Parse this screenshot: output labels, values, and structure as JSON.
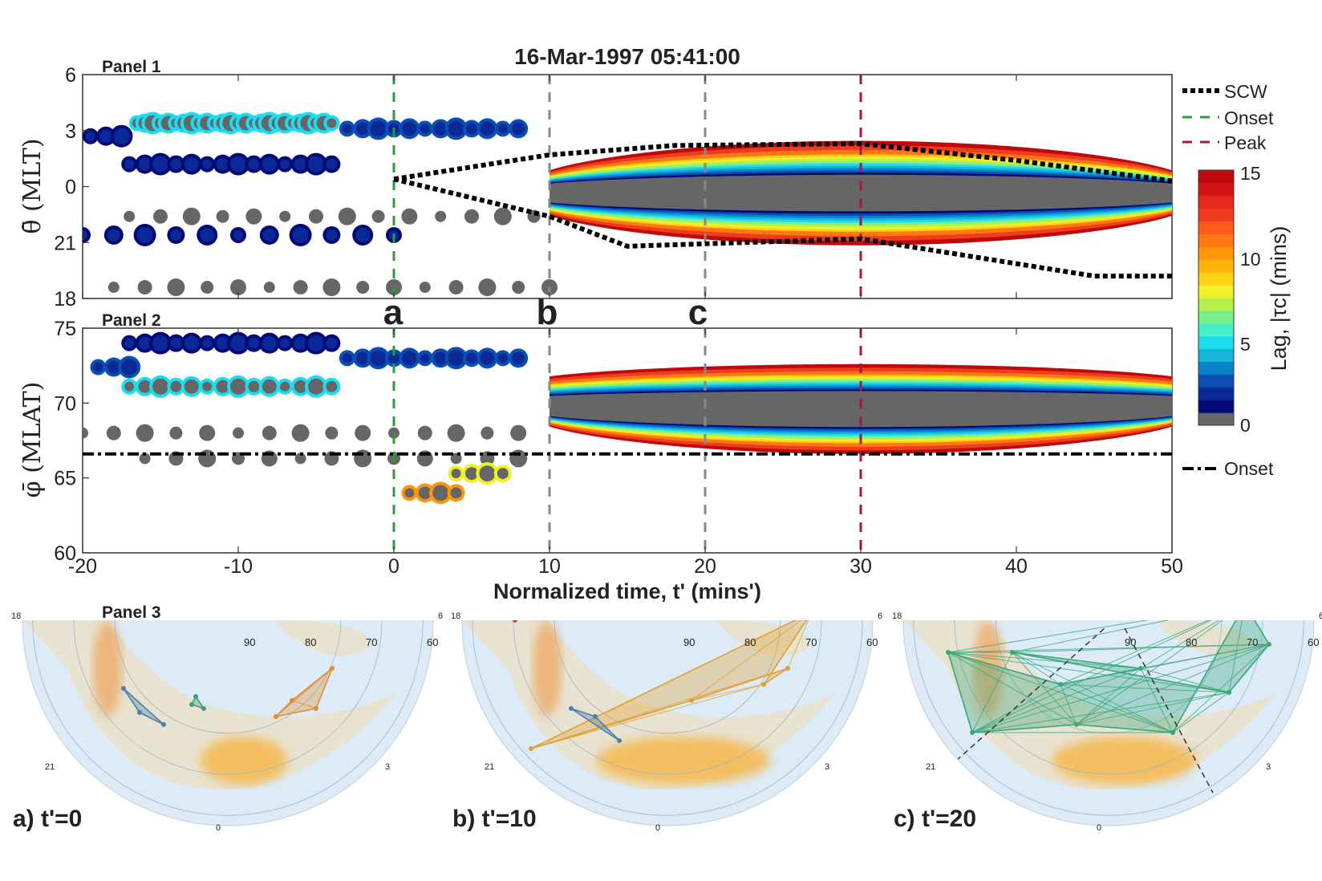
{
  "title": "16-Mar-1997 05:41:00",
  "panel_labels": [
    "Panel 1",
    "Panel 2",
    "Panel 3"
  ],
  "event_letters": [
    "a",
    "b",
    "c"
  ],
  "xlabel": "Normalized time, t' (mins')",
  "panel1_ylabel": "θ̄ (MLT)",
  "panel2_ylabel": "φ̄ (MLAT)",
  "colorbar_label": "Lag, |τc| (mins)",
  "colorbar_ticks": [
    "15",
    "10",
    "5",
    "0"
  ],
  "colorbar_colors": [
    "#666666",
    "#000a78",
    "#0a2896",
    "#0a50b4",
    "#0a82c8",
    "#14b4dc",
    "#1edcf0",
    "#46f0c8",
    "#78f08c",
    "#b4f050",
    "#f0f028",
    "#ffd214",
    "#ffb40a",
    "#ff960a",
    "#ff7814",
    "#ff5a1e",
    "#f03c1e",
    "#e6281e",
    "#d21414",
    "#be0a0a"
  ],
  "legend1": [
    {
      "label": "SCW",
      "style": "dotted",
      "color": "#000000"
    },
    {
      "label": "Onset",
      "style": "dashed",
      "color": "#2a9d3a"
    },
    {
      "label": "Peak",
      "style": "dashed",
      "color": "#a8154a"
    }
  ],
  "legend2": [
    {
      "label": "Onset",
      "style": "dashdot",
      "color": "#000000"
    }
  ],
  "map_panels": [
    {
      "label": "a) t'=0",
      "mlt_labels": [
        "18",
        "21",
        "0",
        "3",
        "6"
      ],
      "lat_labels": [
        "90",
        "80",
        "70",
        "60"
      ]
    },
    {
      "label": "b) t'=10",
      "mlt_labels": [
        "18",
        "21",
        "0",
        "3",
        "6"
      ],
      "lat_labels": [
        "90",
        "80",
        "70",
        "60"
      ]
    },
    {
      "label": "c) t'=20",
      "mlt_labels": [
        "18",
        "21",
        "0",
        "3",
        "6"
      ],
      "lat_labels": [
        "90",
        "80",
        "70",
        "60"
      ]
    }
  ],
  "chart_data": [
    {
      "type": "scatter",
      "title": "16-Mar-1997 05:41:00",
      "panel": "Panel 1",
      "xlabel": "Normalized time, t' (mins')",
      "ylabel": "θ̄ (MLT)",
      "xlim": [
        -20,
        50
      ],
      "xticks": [
        -20,
        -10,
        0,
        10,
        20,
        30,
        40,
        50
      ],
      "ylim": [
        18,
        6
      ],
      "yticks": [
        {
          "v": 6,
          "label": "6"
        },
        {
          "v": 3,
          "label": "3"
        },
        {
          "v": 0,
          "label": "0"
        },
        {
          "v": 21,
          "label": "21"
        },
        {
          "v": 18,
          "label": "18"
        }
      ],
      "vlines": [
        {
          "x": 0,
          "name": "Onset"
        },
        {
          "x": 10,
          "name": "b"
        },
        {
          "x": 20,
          "name": "c"
        },
        {
          "x": 30,
          "name": "Peak"
        }
      ],
      "scw_upper": [
        [
          0,
          0.4
        ],
        [
          10,
          1.7
        ],
        [
          18,
          2.2
        ],
        [
          30,
          2.3
        ],
        [
          40,
          1.4
        ],
        [
          50,
          0.3
        ]
      ],
      "scw_lower": [
        [
          0,
          0.4
        ],
        [
          10,
          -1.6
        ],
        [
          15,
          -3.2
        ],
        [
          30,
          -2.8
        ],
        [
          45,
          -4.8
        ],
        [
          50,
          -4.8
        ]
      ],
      "connected_region": {
        "x": [
          10,
          50
        ],
        "center": [
          -0.3,
          -0.4
        ],
        "halfwidth_max": 2.6
      },
      "point_rows": [
        {
          "x": [
            -19.5,
            -18.5,
            -17.5
          ],
          "y": 2.7,
          "lag": 1
        },
        {
          "x": [
            -16.5,
            -16,
            -15.5,
            -15,
            -14.5,
            -14,
            -13.5,
            -13,
            -12.5,
            -12,
            -11.5,
            -11,
            -10.5,
            -10,
            -9.5,
            -9,
            -8.5,
            -8,
            -7.5,
            -7,
            -6.5,
            -6,
            -5.5,
            -5,
            -4.5,
            -4
          ],
          "y": 3.4,
          "lag": 5
        },
        {
          "x": [
            -17,
            -16,
            -15,
            -14,
            -13,
            -12,
            -11,
            -10,
            -9,
            -8,
            -7,
            -6,
            -5,
            -4
          ],
          "y": 1.2,
          "lag": 1
        },
        {
          "x": [
            -3,
            -2,
            -1,
            0,
            1,
            2,
            3,
            4,
            5,
            6,
            7,
            8
          ],
          "y": 3.1,
          "lag": 2
        },
        {
          "x": [
            -17,
            -15,
            -13,
            -11,
            -9,
            -7,
            -5,
            -3,
            -1,
            1,
            3,
            5,
            7,
            9
          ],
          "y": -1.6,
          "lag": 0
        },
        {
          "x": [
            -20,
            -18,
            -16,
            -14,
            -12,
            -10,
            -8,
            -6,
            -4,
            -2,
            0
          ],
          "y": -2.6,
          "lag": 1
        },
        {
          "x": [
            -18,
            -16,
            -14,
            -12,
            -10,
            -8,
            -6,
            -4,
            -2,
            0,
            2,
            4,
            6,
            8,
            10
          ],
          "y": -5.4,
          "lag": 0
        }
      ]
    },
    {
      "type": "scatter",
      "panel": "Panel 2",
      "xlabel": "Normalized time, t' (mins')",
      "ylabel": "φ̄ (MLAT)",
      "xlim": [
        -20,
        50
      ],
      "xticks": [
        -20,
        -10,
        0,
        10,
        20,
        30,
        40,
        50
      ],
      "ylim": [
        60,
        75
      ],
      "yticks": [
        60,
        65,
        70,
        75
      ],
      "onset_latitude": 66.6,
      "vlines": [
        {
          "x": 0,
          "name": "Onset"
        },
        {
          "x": 10,
          "name": "b"
        },
        {
          "x": 20,
          "name": "c"
        },
        {
          "x": 30,
          "name": "Peak"
        }
      ],
      "connected_region": {
        "x": [
          10,
          50
        ],
        "upper": 72.6,
        "lower": 66.6,
        "core": [
          68,
          71.5
        ]
      },
      "point_rows": [
        {
          "x": [
            -17,
            -16,
            -15,
            -14,
            -13,
            -12,
            -11,
            -10,
            -9,
            -8,
            -7,
            -6,
            -5,
            -4
          ],
          "y": 74,
          "lag": 1
        },
        {
          "x": [
            -19,
            -18,
            -17
          ],
          "y": 72.4,
          "lag": 2
        },
        {
          "x": [
            -17,
            -16,
            -15,
            -14,
            -13,
            -12,
            -11,
            -10,
            -9,
            -8,
            -7,
            -6,
            -5,
            -4
          ],
          "y": 71.1,
          "lag": 5
        },
        {
          "x": [
            -3,
            -2,
            -1,
            0,
            1,
            2,
            3,
            4,
            5,
            6,
            7,
            8
          ],
          "y": 73,
          "lag": 2
        },
        {
          "x": [
            -20,
            -18,
            -16,
            -14,
            -12,
            -10,
            -8,
            -6,
            -4,
            -2,
            0,
            2,
            4,
            6,
            8
          ],
          "y": 68,
          "lag": 0
        },
        {
          "x": [
            -16,
            -14,
            -12,
            -10,
            -8,
            -6,
            -4,
            -2,
            0,
            2,
            4,
            6,
            8
          ],
          "y": 66.3,
          "lag": 0
        },
        {
          "x": [
            1,
            2,
            3,
            4
          ],
          "y": 64,
          "lag": 10
        },
        {
          "x": [
            4,
            5,
            6,
            7
          ],
          "y": 65.3,
          "lag": 8
        }
      ]
    }
  ]
}
